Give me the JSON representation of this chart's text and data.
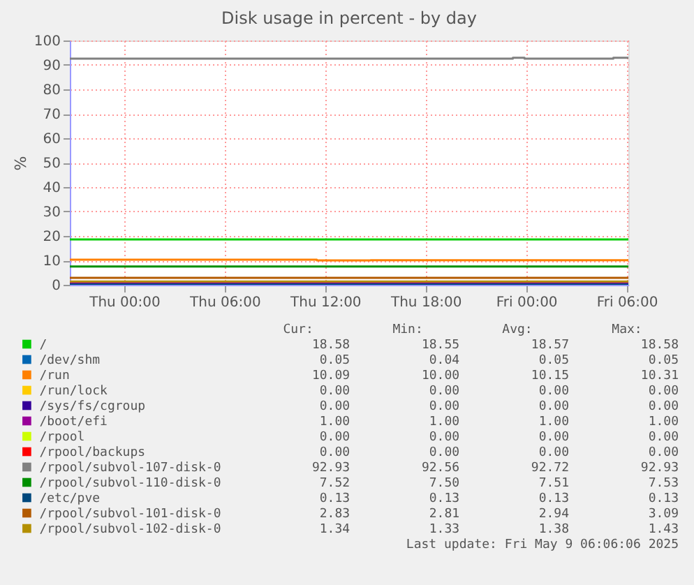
{
  "chart_data": {
    "type": "step",
    "title": "Disk usage in percent - by day",
    "ylabel": "%",
    "xlim": [
      "2025-05-07T20:45",
      "2025-05-09T06:06"
    ],
    "xticks": [
      {
        "value": "2025-05-08T00:00",
        "label": "Thu 00:00"
      },
      {
        "value": "2025-05-08T06:00",
        "label": "Thu 06:00"
      },
      {
        "value": "2025-05-08T12:00",
        "label": "Thu 12:00"
      },
      {
        "value": "2025-05-08T18:00",
        "label": "Thu 18:00"
      },
      {
        "value": "2025-05-09T00:00",
        "label": "Fri 00:00"
      },
      {
        "value": "2025-05-09T06:00",
        "label": "Fri 06:00"
      }
    ],
    "ylim": [
      0,
      100
    ],
    "yticks": [
      0,
      10,
      20,
      30,
      40,
      50,
      60,
      70,
      80,
      90,
      100
    ],
    "grid": true,
    "legend": "bottom",
    "series": [
      {
        "name": "/",
        "color": "#00cc00",
        "x": [
          "2025-05-07T20:45",
          "2025-05-08T12:00",
          "2025-05-08T12:06",
          "2025-05-08T13:00",
          "2025-05-08T13:30",
          "2025-05-08T15:00",
          "2025-05-08T16:00",
          "2025-05-08T17:00",
          "2025-05-08T18:00",
          "2025-05-08T23:18",
          "2025-05-08T23:30",
          "2025-05-09T00:30",
          "2025-05-09T01:00",
          "2025-05-09T02:00",
          "2025-05-09T06:06"
        ],
        "values": [
          18.55,
          18.55,
          18.58,
          18.55,
          18.58,
          18.55,
          18.58,
          18.58,
          18.58,
          18.58,
          18.55,
          18.58,
          18.55,
          18.58,
          18.58
        ]
      },
      {
        "name": "/dev/shm",
        "color": "#0066b3",
        "values": [
          null
        ]
      },
      {
        "name": "/run",
        "color": "#ff8000",
        "x": [
          "2025-05-07T20:45",
          "2025-05-08T11:30",
          "2025-05-08T14:42",
          "2025-05-09T06:06"
        ],
        "values": [
          10.31,
          10.0,
          10.09,
          10.09
        ]
      },
      {
        "name": "/run/lock",
        "color": "#ffcc00",
        "values": [
          null
        ]
      },
      {
        "name": "/sys/fs/cgroup",
        "color": "#330099",
        "values": [
          null
        ]
      },
      {
        "name": "/boot/efi",
        "color": "#990099",
        "x": [
          "2025-05-07T20:45",
          "2025-05-09T06:06"
        ],
        "values": [
          1,
          1
        ]
      },
      {
        "name": "/rpool",
        "color": "#ccff00",
        "values": [
          null
        ]
      },
      {
        "name": "/rpool/backups",
        "color": "#ff0000",
        "values": [
          null
        ]
      },
      {
        "name": "/rpool/subvol-107-disk-0",
        "color": "#808080",
        "x": [
          "2025-05-07T20:45",
          "2025-05-08T23:12",
          "2025-05-08T23:54",
          "2025-05-09T05:12",
          "2025-05-09T06:06"
        ],
        "values": [
          92.56,
          92.93,
          92.56,
          92.93,
          92.93
        ]
      },
      {
        "name": "/rpool/subvol-110-disk-0",
        "color": "#008f00",
        "x": [
          "2025-05-07T20:45",
          "2025-05-09T06:06"
        ],
        "values": [
          7.52,
          7.52
        ]
      },
      {
        "name": "/etc/pve",
        "color": "#00487d",
        "x": [
          "2025-05-07T20:45",
          "2025-05-09T06:06"
        ],
        "values": [
          0.13,
          0.13
        ]
      },
      {
        "name": "/rpool/subvol-101-disk-0",
        "color": "#b35a00",
        "x": [
          "2025-05-07T20:45",
          "2025-05-09T06:06"
        ],
        "values": [
          2.83,
          2.83
        ]
      },
      {
        "name": "/rpool/subvol-102-disk-0",
        "color": "#b38f00",
        "x": [
          "2025-05-07T20:45",
          "2025-05-09T06:06"
        ],
        "values": [
          1.34,
          1.34
        ]
      }
    ],
    "annotations": [
      "Cur:",
      "Min:",
      "Avg:",
      "Max:",
      "18.58",
      "18.55",
      "18.57",
      "18.58",
      "0.05",
      "0.04",
      "0.05",
      "0.05",
      "10.09",
      "10.00",
      "10.15",
      "10.31",
      "0.00",
      "0.00",
      "0.00",
      "0.00",
      "0.00",
      "0.00",
      "0.00",
      "0.00",
      "1.00",
      "1.00",
      "1.00",
      "1.00",
      "0.00",
      "0.00",
      "0.00",
      "0.00",
      "0.00",
      "0.00",
      "0.00",
      "0.00",
      "92.93",
      "92.56",
      "92.72",
      "92.93",
      "7.52",
      "7.50",
      "7.51",
      "7.53",
      "0.13",
      "0.13",
      "0.13",
      "0.13",
      "2.83",
      "2.81",
      "2.94",
      "3.09",
      "1.34",
      "1.33",
      "1.38",
      "1.43",
      "Last update: Fri May  9 06:06:06 2025"
    ]
  }
}
